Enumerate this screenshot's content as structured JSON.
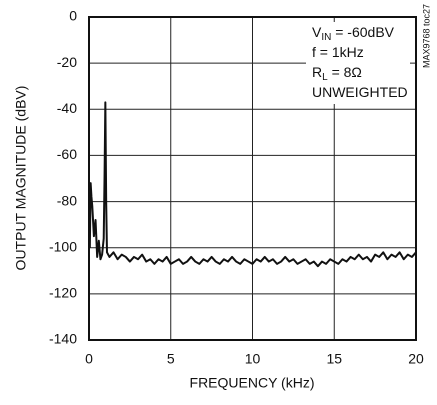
{
  "chart_data": {
    "type": "line",
    "x_label": "FREQUENCY (kHz)",
    "y_label": "OUTPUT MAGNITUDE (dBV)",
    "side_note": "MAX9768 toc27",
    "annotations": [
      {
        "text": "V",
        "sub": "IN",
        "after": " = -60dBV"
      },
      {
        "text": "f = 1kHz"
      },
      {
        "text": "R",
        "sub": "L",
        "after": " = 8Ω"
      },
      {
        "text": "UNWEIGHTED"
      }
    ],
    "color": "#111111",
    "grid": true,
    "xlim": [
      0,
      20
    ],
    "xticks": [
      0,
      5,
      10,
      15,
      20
    ],
    "ylim": [
      -140,
      0
    ],
    "yticks": [
      -140,
      -120,
      -100,
      -80,
      -60,
      -40,
      -20,
      0
    ],
    "x": [
      0.05,
      0.1,
      0.15,
      0.2,
      0.3,
      0.4,
      0.5,
      0.6,
      0.7,
      0.8,
      0.9,
      0.95,
      1.0,
      1.05,
      1.1,
      1.25,
      1.5,
      1.75,
      2,
      2.25,
      2.5,
      2.75,
      3,
      3.25,
      3.5,
      3.75,
      4,
      4.25,
      4.5,
      4.75,
      5,
      5.25,
      5.5,
      5.75,
      6,
      6.25,
      6.5,
      6.75,
      7,
      7.25,
      7.5,
      7.75,
      8,
      8.25,
      8.5,
      8.75,
      9,
      9.25,
      9.5,
      9.75,
      10,
      10.25,
      10.5,
      10.75,
      11,
      11.25,
      11.5,
      11.75,
      12,
      12.25,
      12.5,
      12.75,
      13,
      13.25,
      13.5,
      13.75,
      14,
      14.25,
      14.5,
      14.75,
      15,
      15.25,
      15.5,
      15.75,
      16,
      16.25,
      16.5,
      16.75,
      17,
      17.25,
      17.5,
      17.75,
      18,
      18.25,
      18.5,
      18.75,
      19,
      19.25,
      19.5,
      19.75,
      20
    ],
    "values": [
      -100,
      -72,
      -78,
      -82,
      -95,
      -88,
      -104,
      -97,
      -105,
      -103,
      -96,
      -70,
      -37,
      -80,
      -102,
      -104,
      -102,
      -105,
      -103,
      -104,
      -106,
      -104,
      -105,
      -103,
      -106,
      -105,
      -107,
      -105,
      -106,
      -104,
      -107,
      -106,
      -105,
      -107,
      -106,
      -104,
      -106,
      -107,
      -105,
      -106,
      -104,
      -106,
      -107,
      -105,
      -106,
      -104,
      -106,
      -107,
      -105,
      -106,
      -107,
      -105,
      -106,
      -104,
      -106,
      -105,
      -107,
      -106,
      -104,
      -106,
      -105,
      -107,
      -106,
      -105,
      -107,
      -106,
      -108,
      -106,
      -107,
      -105,
      -106,
      -107,
      -105,
      -106,
      -104,
      -105,
      -103,
      -105,
      -104,
      -106,
      -103,
      -104,
      -102,
      -105,
      -103,
      -104,
      -102,
      -105,
      -103,
      -104,
      -102
    ]
  }
}
